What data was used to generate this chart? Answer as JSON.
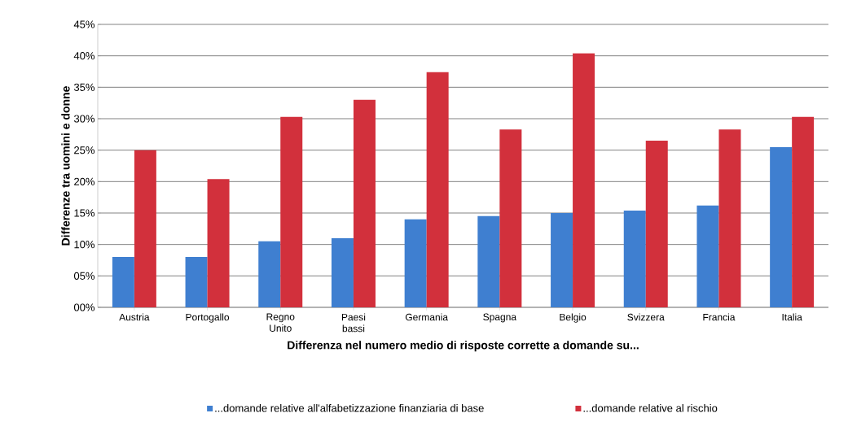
{
  "chart_data": {
    "type": "bar",
    "xlabel": "Differenza nel numero medio di risposte corrette a domande su...",
    "ylabel": "Differenze tra uomini e donne",
    "categories": [
      "Austria",
      "Portogallo",
      "Regno Unito",
      "Paesi bassi",
      "Germania",
      "Spagna",
      "Belgio",
      "Svizzera",
      "Francia",
      "Italia"
    ],
    "series": [
      {
        "name": "...domande relative all'alfabetizzazione finanziaria di base",
        "color": "#3f7fd0",
        "values": [
          8,
          8,
          10.5,
          11,
          14,
          14.5,
          15,
          15.4,
          16.2,
          25.5
        ]
      },
      {
        "name": "...domande relative al rischio",
        "color": "#d2303c",
        "values": [
          25,
          20.4,
          30.3,
          33,
          37.4,
          28.3,
          40.4,
          26.5,
          28.3,
          30.3
        ]
      }
    ],
    "ylim": [
      0,
      45
    ],
    "yticks": [
      {
        "value": 0,
        "label": "00%"
      },
      {
        "value": 5,
        "label": "05%"
      },
      {
        "value": 10,
        "label": "10%"
      },
      {
        "value": 15,
        "label": "15%"
      },
      {
        "value": 20,
        "label": "20%"
      },
      {
        "value": 25,
        "label": "25%"
      },
      {
        "value": 30,
        "label": "30%"
      },
      {
        "value": 35,
        "label": "35%"
      },
      {
        "value": 40,
        "label": "40%"
      },
      {
        "value": 45,
        "label": "45%"
      }
    ],
    "grid": "y",
    "legend": "bottom"
  }
}
